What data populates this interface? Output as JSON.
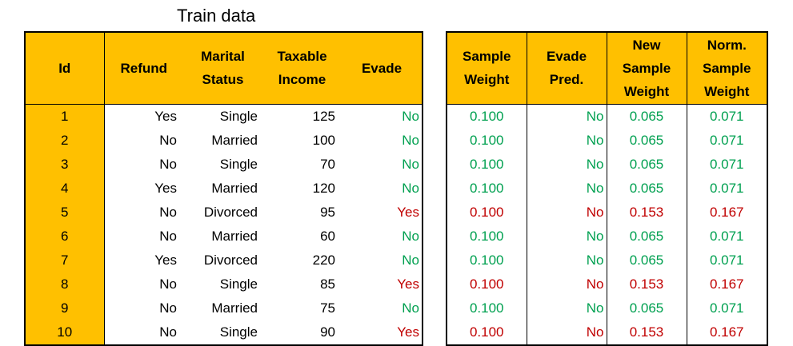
{
  "title": "Train data",
  "train": {
    "headers": {
      "id": "Id",
      "refund": "Refund",
      "marital_1": "Marital",
      "marital_2": "Status",
      "income_1": "Taxable",
      "income_2": "Income",
      "evade": "Evade"
    },
    "rows": [
      {
        "id": "1",
        "refund": "Yes",
        "marital": "Single",
        "income": "125",
        "evade": "No"
      },
      {
        "id": "2",
        "refund": "No",
        "marital": "Married",
        "income": "100",
        "evade": "No"
      },
      {
        "id": "3",
        "refund": "No",
        "marital": "Single",
        "income": "70",
        "evade": "No"
      },
      {
        "id": "4",
        "refund": "Yes",
        "marital": "Married",
        "income": "120",
        "evade": "No"
      },
      {
        "id": "5",
        "refund": "No",
        "marital": "Divorced",
        "income": "95",
        "evade": "Yes"
      },
      {
        "id": "6",
        "refund": "No",
        "marital": "Married",
        "income": "60",
        "evade": "No"
      },
      {
        "id": "7",
        "refund": "Yes",
        "marital": "Divorced",
        "income": "220",
        "evade": "No"
      },
      {
        "id": "8",
        "refund": "No",
        "marital": "Single",
        "income": "85",
        "evade": "Yes"
      },
      {
        "id": "9",
        "refund": "No",
        "marital": "Married",
        "income": "75",
        "evade": "No"
      },
      {
        "id": "10",
        "refund": "No",
        "marital": "Single",
        "income": "90",
        "evade": "Yes"
      }
    ]
  },
  "weights": {
    "headers": {
      "sample_1": "Sample",
      "sample_2": "Weight",
      "pred_1": "Evade",
      "pred_2": "Pred.",
      "new_1": "New",
      "new_2": "Sample",
      "new_3": "Weight",
      "norm_1": "Norm.",
      "norm_2": "Sample",
      "norm_3": "Weight"
    },
    "rows": [
      {
        "sample": "0.100",
        "pred": "No",
        "new": "0.065",
        "norm": "0.071"
      },
      {
        "sample": "0.100",
        "pred": "No",
        "new": "0.065",
        "norm": "0.071"
      },
      {
        "sample": "0.100",
        "pred": "No",
        "new": "0.065",
        "norm": "0.071"
      },
      {
        "sample": "0.100",
        "pred": "No",
        "new": "0.065",
        "norm": "0.071"
      },
      {
        "sample": "0.100",
        "pred": "No",
        "new": "0.153",
        "norm": "0.167"
      },
      {
        "sample": "0.100",
        "pred": "No",
        "new": "0.065",
        "norm": "0.071"
      },
      {
        "sample": "0.100",
        "pred": "No",
        "new": "0.065",
        "norm": "0.071"
      },
      {
        "sample": "0.100",
        "pred": "No",
        "new": "0.153",
        "norm": "0.167"
      },
      {
        "sample": "0.100",
        "pred": "No",
        "new": "0.065",
        "norm": "0.071"
      },
      {
        "sample": "0.100",
        "pred": "No",
        "new": "0.153",
        "norm": "0.167"
      }
    ]
  },
  "colors": {
    "header_bg": "#FFC000",
    "correct": "#00A050",
    "misclassified": "#C00000"
  }
}
